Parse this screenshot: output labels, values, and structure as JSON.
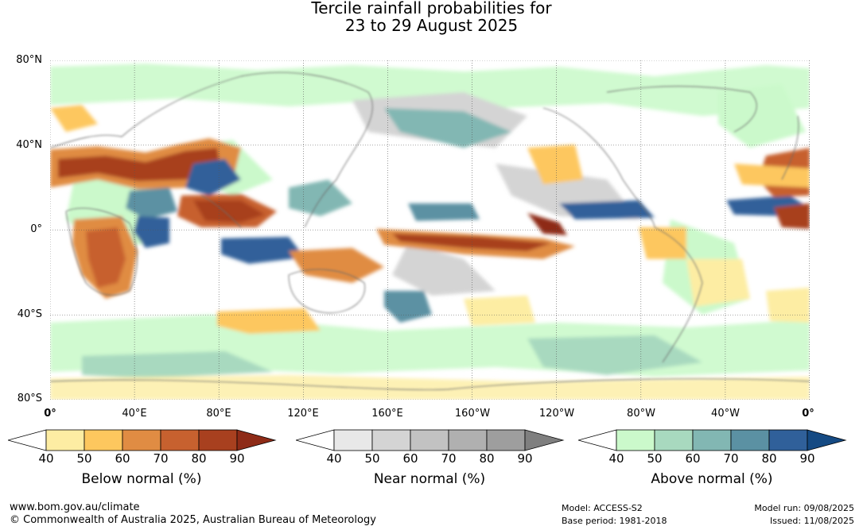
{
  "title": {
    "line1": "Tercile rainfall probabilities for",
    "line2": "23 to 29 August 2025"
  },
  "lat_labels": [
    "80°N",
    "40°N",
    "0°",
    "40°S",
    "80°S"
  ],
  "lon_labels": [
    "0°",
    "40°E",
    "80°E",
    "120°E",
    "160°E",
    "160°W",
    "120°W",
    "80°W",
    "40°W",
    "0°"
  ],
  "colorbars": [
    {
      "label": "Below normal (%)",
      "ticks": [
        "40",
        "50",
        "60",
        "70",
        "80",
        "90"
      ],
      "colors": [
        "#ffffff",
        "#fdeda3",
        "#fdc75e",
        "#e08c43",
        "#c7612f",
        "#a8401f",
        "#8e2b17"
      ]
    },
    {
      "label": "Near normal (%)",
      "ticks": [
        "40",
        "50",
        "60",
        "70",
        "80",
        "90"
      ],
      "colors": [
        "#ffffff",
        "#e8e8e8",
        "#d4d4d4",
        "#c2c2c2",
        "#b0b0b0",
        "#9e9e9e",
        "#7f7f7f"
      ]
    },
    {
      "label": "Above normal (%)",
      "ticks": [
        "40",
        "50",
        "60",
        "70",
        "80",
        "90"
      ],
      "colors": [
        "#ffffff",
        "#cbf9cb",
        "#a8d9bf",
        "#82b7b3",
        "#5b91a3",
        "#30609a",
        "#154a83"
      ]
    }
  ],
  "footer": {
    "website": "www.bom.gov.au/climate",
    "copyright": "© Commonwealth of Australia 2025, Australian Bureau of Meteorology",
    "model": "Model: ACCESS-S2",
    "base_period": "Base period: 1981-2018",
    "model_run": "Model run: 09/08/2025",
    "issued": "Issued: 11/08/2025"
  }
}
